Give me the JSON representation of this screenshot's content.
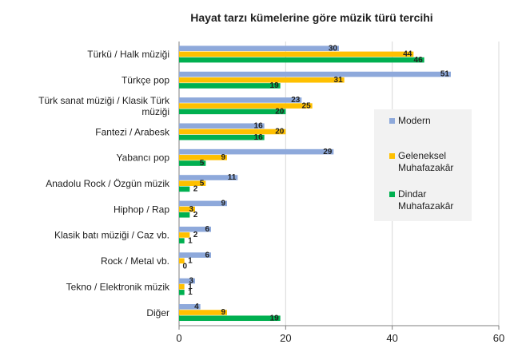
{
  "chart_data": {
    "type": "bar",
    "orientation": "horizontal",
    "title": "Hayat tarzı kümelerine göre müzik türü tercihi",
    "categories": [
      "Türkü / Halk müziği",
      "Türkçe pop",
      "Türk sanat müziği / Klasik Türk müziği",
      "Fantezi / Arabesk",
      "Yabancı pop",
      "Anadolu Rock / Özgün müzik",
      "Hiphop / Rap",
      "Klasik batı müziği / Caz vb.",
      "Rock / Metal vb.",
      "Tekno / Elektronik müzik",
      "Diğer"
    ],
    "series": [
      {
        "name": "Modern",
        "color": "#8EA9DB",
        "values": [
          30,
          51,
          23,
          16,
          29,
          11,
          9,
          6,
          6,
          3,
          4
        ]
      },
      {
        "name": "Geleneksel Muhafazakâr",
        "color": "#FFC000",
        "values": [
          44,
          31,
          25,
          20,
          9,
          5,
          3,
          2,
          1,
          1,
          9
        ]
      },
      {
        "name": "Dindar Muhafazakâr",
        "color": "#00B050",
        "values": [
          46,
          19,
          20,
          16,
          5,
          2,
          2,
          1,
          0,
          1,
          19
        ]
      }
    ],
    "xlim": [
      0,
      60
    ],
    "xticks": [
      0,
      20,
      40,
      60
    ],
    "grid": true,
    "legend_position": "right"
  }
}
